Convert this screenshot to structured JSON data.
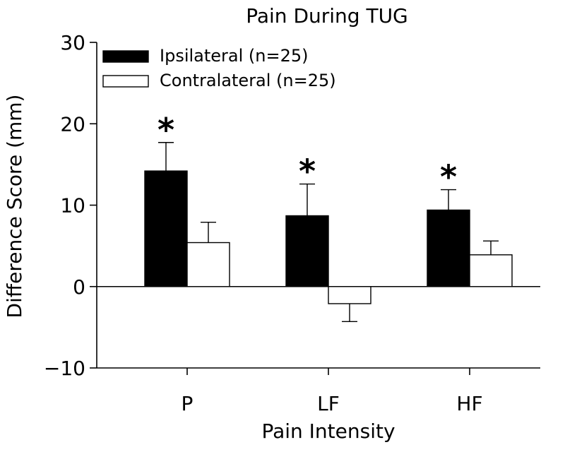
{
  "chart_data": {
    "type": "bar",
    "title": "Pain During TUG",
    "xlabel": "Pain Intensity",
    "ylabel": "Difference Score (mm)",
    "ylim": [
      -10,
      30
    ],
    "yticks": [
      30,
      20,
      10,
      0,
      -10
    ],
    "ytick_labels": [
      "30",
      "20",
      "10",
      "0",
      "−10"
    ],
    "categories": [
      "P",
      "LF",
      "HF"
    ],
    "series": [
      {
        "name": "Ipsilateral (n=25)",
        "fill": "#000000",
        "values": [
          14.2,
          8.7,
          9.4
        ],
        "errors": [
          3.5,
          3.9,
          2.5
        ]
      },
      {
        "name": "Contralateral (n=25)",
        "fill": "#ffffff",
        "values": [
          5.4,
          -2.1,
          3.9
        ],
        "errors": [
          2.5,
          2.2,
          1.7
        ]
      }
    ],
    "annotations": [
      "*",
      "*",
      "*"
    ],
    "grid": false,
    "legend_position": "top-left"
  }
}
